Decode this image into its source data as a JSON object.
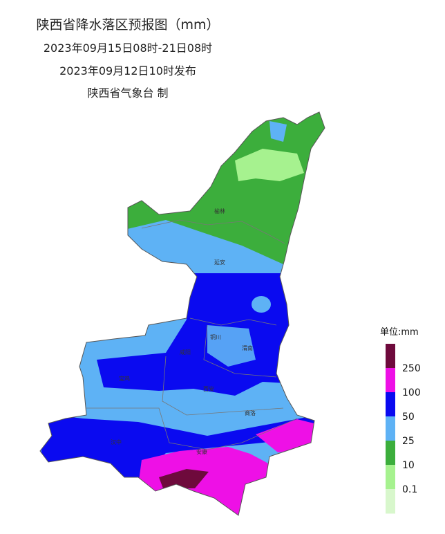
{
  "header": {
    "title": "陕西省降水落区预报图（mm）",
    "period": "2023年09月15日08时-21日08时",
    "issued": "2023年09月12日10时发布",
    "issuer": "陕西省气象台 制"
  },
  "map": {
    "cities": [
      "榆林",
      "延安",
      "铜川",
      "渭南",
      "咸阳",
      "宝鸡",
      "西安",
      "商洛",
      "汉中",
      "安康"
    ]
  },
  "legend": {
    "unit": "单位:mm",
    "labels": [
      "250",
      "100",
      "50",
      "25",
      "10",
      "0.1"
    ],
    "colors": [
      "#6e0a3c",
      "#ee10e6",
      "#0a0af0",
      "#5eb2f5",
      "#3cae3c",
      "#a6f28f",
      "#d8f7cc"
    ]
  }
}
